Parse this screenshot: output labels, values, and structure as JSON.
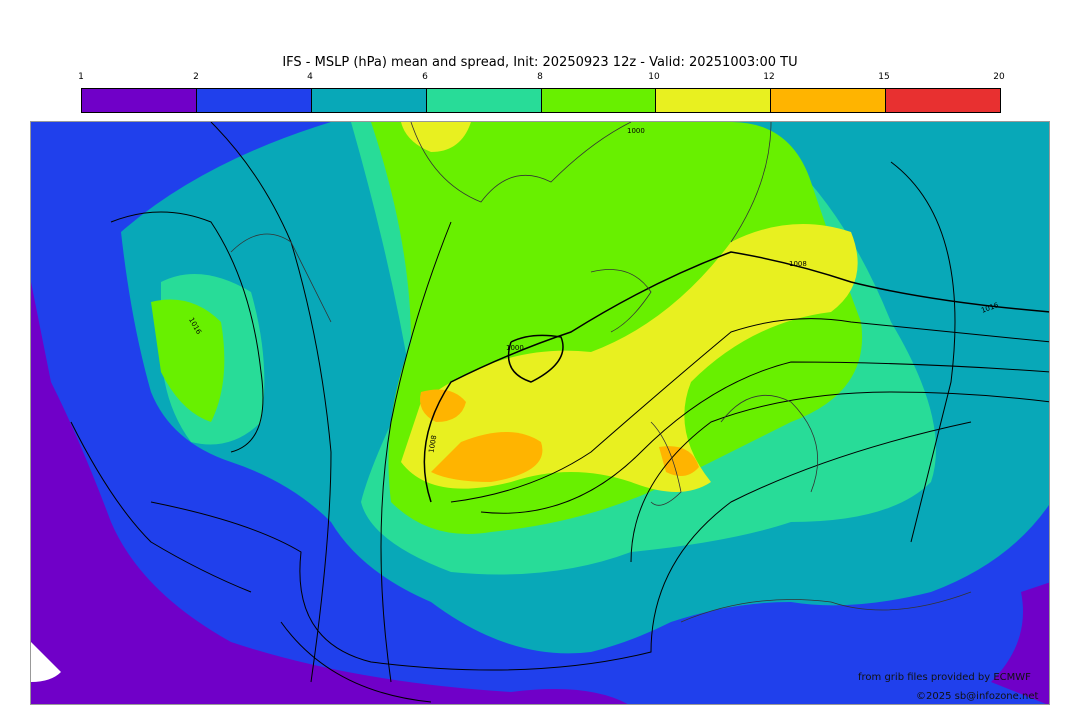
{
  "title": "IFS - MSLP (hPa) mean and spread, Init: 20250923 12z - Valid: 20251003:00 TU",
  "colorbar": {
    "ticks": [
      "1",
      "2",
      "4",
      "6",
      "8",
      "10",
      "12",
      "15",
      "20"
    ],
    "colors": [
      "#7000c8",
      "#2040ec",
      "#08a8b8",
      "#28dc98",
      "#68f000",
      "#e8f020",
      "#ffb400",
      "#e83030"
    ]
  },
  "isobar_labels": [
    "1000",
    "1008",
    "1016",
    "1008",
    "1016",
    "1000"
  ],
  "credits": {
    "source": "from grib files provided by ECMWF",
    "copyright": "©2025 sb@infozone.net"
  }
}
